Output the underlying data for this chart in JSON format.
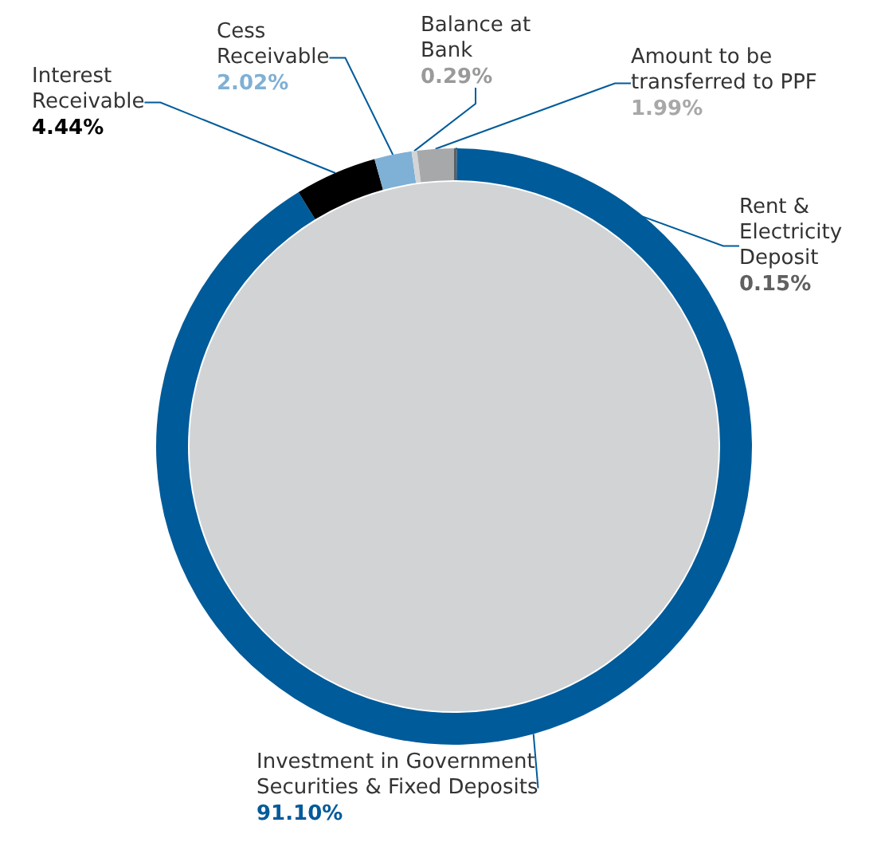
{
  "chart_data": {
    "type": "donut",
    "categories": [
      "Rent & Electricity Deposit",
      "Investment in Government Securities & Fixed Deposits",
      "Interest Receivable",
      "Cess Receivable",
      "Balance at Bank",
      "Amount to be transferred to PPF"
    ],
    "values": [
      0.15,
      91.1,
      4.44,
      2.02,
      0.29,
      1.99
    ],
    "colors": [
      "#5f6062",
      "#005b9a",
      "#000000",
      "#7fb0d5",
      "#d4d4d6",
      "#a7a8aa"
    ],
    "value_labels": [
      "0.15%",
      "91.10%",
      "4.44%",
      "2.02%",
      "0.29%",
      "1.99%"
    ]
  }
}
